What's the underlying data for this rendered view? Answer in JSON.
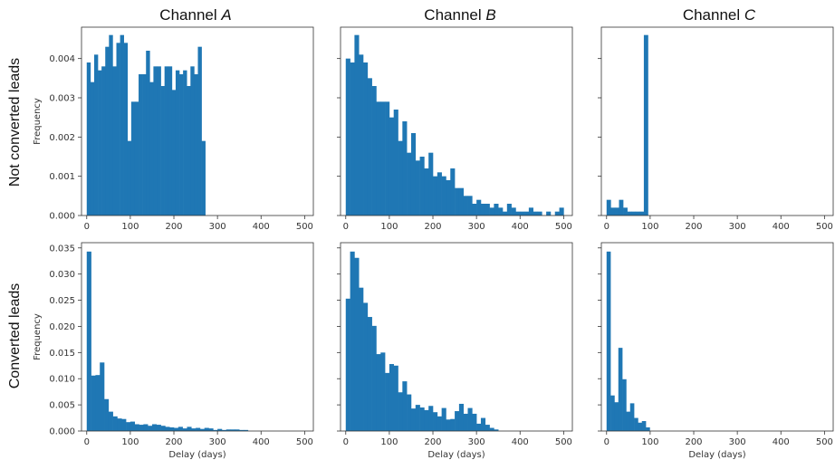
{
  "figure": {
    "column_titles": [
      {
        "prefix": "Channel ",
        "italic": "A"
      },
      {
        "prefix": "Channel ",
        "italic": "B"
      },
      {
        "prefix": "Channel ",
        "italic": "C"
      }
    ],
    "row_labels": [
      "Not converted leads",
      "Converted leads"
    ],
    "bar_color": "#1f77b4"
  },
  "chart_data": [
    {
      "type": "bar",
      "panel": "not-converted-A",
      "title": "Channel A",
      "xlabel": "",
      "ylabel": "Frequency",
      "xlim": [
        -12,
        520
      ],
      "ylim": [
        0,
        0.0048
      ],
      "bin_width": 8.5,
      "x_ticks": [
        0,
        100,
        200,
        300,
        400,
        500
      ],
      "y_ticks": [
        0.0,
        0.001,
        0.002,
        0.003,
        0.004
      ],
      "y_tick_labels": [
        "0.000",
        "0.001",
        "0.002",
        "0.003",
        "0.004"
      ],
      "bin_starts": [
        0,
        8.5,
        17,
        25.5,
        34,
        42.5,
        51,
        59.5,
        68,
        76.5,
        85,
        93.5,
        102,
        110.5,
        119,
        127.5,
        136,
        144.5,
        153,
        161.5,
        170,
        178.5,
        187,
        195.5,
        204,
        212.5,
        221,
        229.5,
        238,
        246.5,
        255,
        263.5
      ],
      "values": [
        0.0039,
        0.0034,
        0.0041,
        0.0037,
        0.0038,
        0.0043,
        0.0046,
        0.0038,
        0.0044,
        0.0046,
        0.0044,
        0.0019,
        0.0029,
        0.0029,
        0.0036,
        0.0036,
        0.0042,
        0.0034,
        0.0038,
        0.0038,
        0.0033,
        0.0038,
        0.0038,
        0.0032,
        0.0037,
        0.0036,
        0.0037,
        0.0033,
        0.0038,
        0.0036,
        0.0043,
        0.0019
      ]
    },
    {
      "type": "bar",
      "panel": "not-converted-B",
      "title": "Channel B",
      "xlabel": "",
      "ylabel": "",
      "xlim": [
        -12,
        520
      ],
      "ylim": [
        0,
        0.0048
      ],
      "bin_width": 10,
      "x_ticks": [
        0,
        100,
        200,
        300,
        400,
        500
      ],
      "y_ticks": [
        0.0,
        0.001,
        0.002,
        0.003,
        0.004
      ],
      "y_tick_labels": [
        "",
        "",
        "",
        "",
        ""
      ],
      "bin_starts": [
        0,
        10,
        20,
        30,
        40,
        50,
        60,
        70,
        80,
        90,
        100,
        110,
        120,
        130,
        140,
        150,
        160,
        170,
        180,
        190,
        200,
        210,
        220,
        230,
        240,
        250,
        260,
        270,
        280,
        290,
        300,
        310,
        320,
        330,
        340,
        350,
        360,
        370,
        380,
        390,
        400,
        410,
        420,
        430,
        440,
        450,
        460,
        470,
        480,
        490
      ],
      "values": [
        0.004,
        0.0039,
        0.0046,
        0.0041,
        0.0039,
        0.0035,
        0.0033,
        0.0029,
        0.0029,
        0.0029,
        0.0025,
        0.0027,
        0.0019,
        0.0024,
        0.0016,
        0.0021,
        0.0014,
        0.0015,
        0.0012,
        0.0016,
        0.001,
        0.0011,
        0.001,
        0.0009,
        0.0012,
        0.0007,
        0.0007,
        0.0005,
        0.0005,
        0.0003,
        0.0004,
        0.0003,
        0.0003,
        0.0002,
        0.0003,
        0.0002,
        0.0001,
        0.0003,
        0.0002,
        0.0001,
        0.0001,
        0.0001,
        0.0002,
        0.0001,
        0.0001,
        0,
        0.0001,
        0,
        0.0001,
        0.0002
      ]
    },
    {
      "type": "bar",
      "panel": "not-converted-C",
      "title": "Channel C",
      "xlabel": "",
      "ylabel": "",
      "xlim": [
        -12,
        520
      ],
      "ylim": [
        0,
        0.0048
      ],
      "bin_width": 9.5,
      "x_ticks": [
        0,
        100,
        200,
        300,
        400,
        500
      ],
      "y_ticks": [
        0.0,
        0.001,
        0.002,
        0.003,
        0.004
      ],
      "y_tick_labels": [
        "",
        "",
        "",
        "",
        ""
      ],
      "bin_starts": [
        0,
        9.5,
        19,
        28.5,
        38,
        47.5,
        57,
        66.5,
        76,
        85.5
      ],
      "values": [
        0.0004,
        0.0002,
        0.0002,
        0.0004,
        0.0002,
        0.0001,
        0.0001,
        0.0001,
        0.0001,
        0.0046
      ]
    },
    {
      "type": "bar",
      "panel": "converted-A",
      "title": "",
      "xlabel": "Delay (days)",
      "ylabel": "Frequency",
      "xlim": [
        -12,
        520
      ],
      "ylim": [
        0,
        0.036
      ],
      "bin_width": 10,
      "x_ticks": [
        0,
        100,
        200,
        300,
        400,
        500
      ],
      "y_ticks": [
        0.0,
        0.005,
        0.01,
        0.015,
        0.02,
        0.025,
        0.03,
        0.035
      ],
      "y_tick_labels": [
        "0.000",
        "0.005",
        "0.010",
        "0.015",
        "0.020",
        "0.025",
        "0.030",
        "0.035"
      ],
      "bin_starts": [
        0,
        10,
        20,
        30,
        40,
        50,
        60,
        70,
        80,
        90,
        100,
        110,
        120,
        130,
        140,
        150,
        160,
        170,
        180,
        190,
        200,
        210,
        220,
        230,
        240,
        250,
        260,
        270,
        280,
        290,
        300,
        310,
        320,
        330,
        340,
        350,
        360
      ],
      "values": [
        0.0343,
        0.0106,
        0.0107,
        0.0131,
        0.0061,
        0.0037,
        0.0028,
        0.0024,
        0.0023,
        0.0017,
        0.0018,
        0.0013,
        0.0012,
        0.0013,
        0.001,
        0.0013,
        0.0012,
        0.001,
        0.0008,
        0.0007,
        0.0006,
        0.0008,
        0.0005,
        0.0008,
        0.0005,
        0.0006,
        0.0004,
        0.0006,
        0.0005,
        0.0002,
        0.0004,
        0.0002,
        0.0003,
        0.0003,
        0.0003,
        0.0002,
        0.0002
      ]
    },
    {
      "type": "bar",
      "panel": "converted-B",
      "title": "",
      "xlabel": "Delay (days)",
      "ylabel": "",
      "xlim": [
        -12,
        520
      ],
      "ylim": [
        0,
        0.036
      ],
      "bin_width": 10,
      "x_ticks": [
        0,
        100,
        200,
        300,
        400,
        500
      ],
      "y_ticks": [
        0.0,
        0.005,
        0.01,
        0.015,
        0.02,
        0.025,
        0.03,
        0.035
      ],
      "y_tick_labels": [
        "",
        "",
        "",
        "",
        "",
        "",
        "",
        ""
      ],
      "bin_starts": [
        0,
        10,
        20,
        30,
        40,
        50,
        60,
        70,
        80,
        90,
        100,
        110,
        120,
        130,
        140,
        150,
        160,
        170,
        180,
        190,
        200,
        210,
        220,
        230,
        240,
        250,
        260,
        270,
        280,
        290,
        300,
        310,
        320,
        330,
        340
      ],
      "values": [
        0.0253,
        0.0343,
        0.0331,
        0.0274,
        0.0245,
        0.0218,
        0.0201,
        0.0147,
        0.015,
        0.0111,
        0.0128,
        0.0125,
        0.0074,
        0.0095,
        0.007,
        0.0043,
        0.005,
        0.0045,
        0.004,
        0.0048,
        0.0036,
        0.0028,
        0.0044,
        0.0022,
        0.0023,
        0.0038,
        0.0052,
        0.0033,
        0.0044,
        0.0033,
        0.0014,
        0.0025,
        0.0012,
        0.0006,
        0.0003
      ]
    },
    {
      "type": "bar",
      "panel": "converted-C",
      "title": "",
      "xlabel": "Delay (days)",
      "ylabel": "",
      "xlim": [
        -12,
        520
      ],
      "ylim": [
        0,
        0.036
      ],
      "bin_width": 9,
      "x_ticks": [
        0,
        100,
        200,
        300,
        400,
        500
      ],
      "y_ticks": [
        0.0,
        0.005,
        0.01,
        0.015,
        0.02,
        0.025,
        0.03,
        0.035
      ],
      "y_tick_labels": [
        "",
        "",
        "",
        "",
        "",
        "",
        "",
        ""
      ],
      "bin_starts": [
        0,
        9,
        18,
        27,
        36,
        45,
        54,
        63,
        72,
        81,
        90
      ],
      "values": [
        0.0343,
        0.0068,
        0.0055,
        0.0159,
        0.0099,
        0.0037,
        0.0053,
        0.0025,
        0.0016,
        0.0019,
        0.0007
      ]
    }
  ]
}
